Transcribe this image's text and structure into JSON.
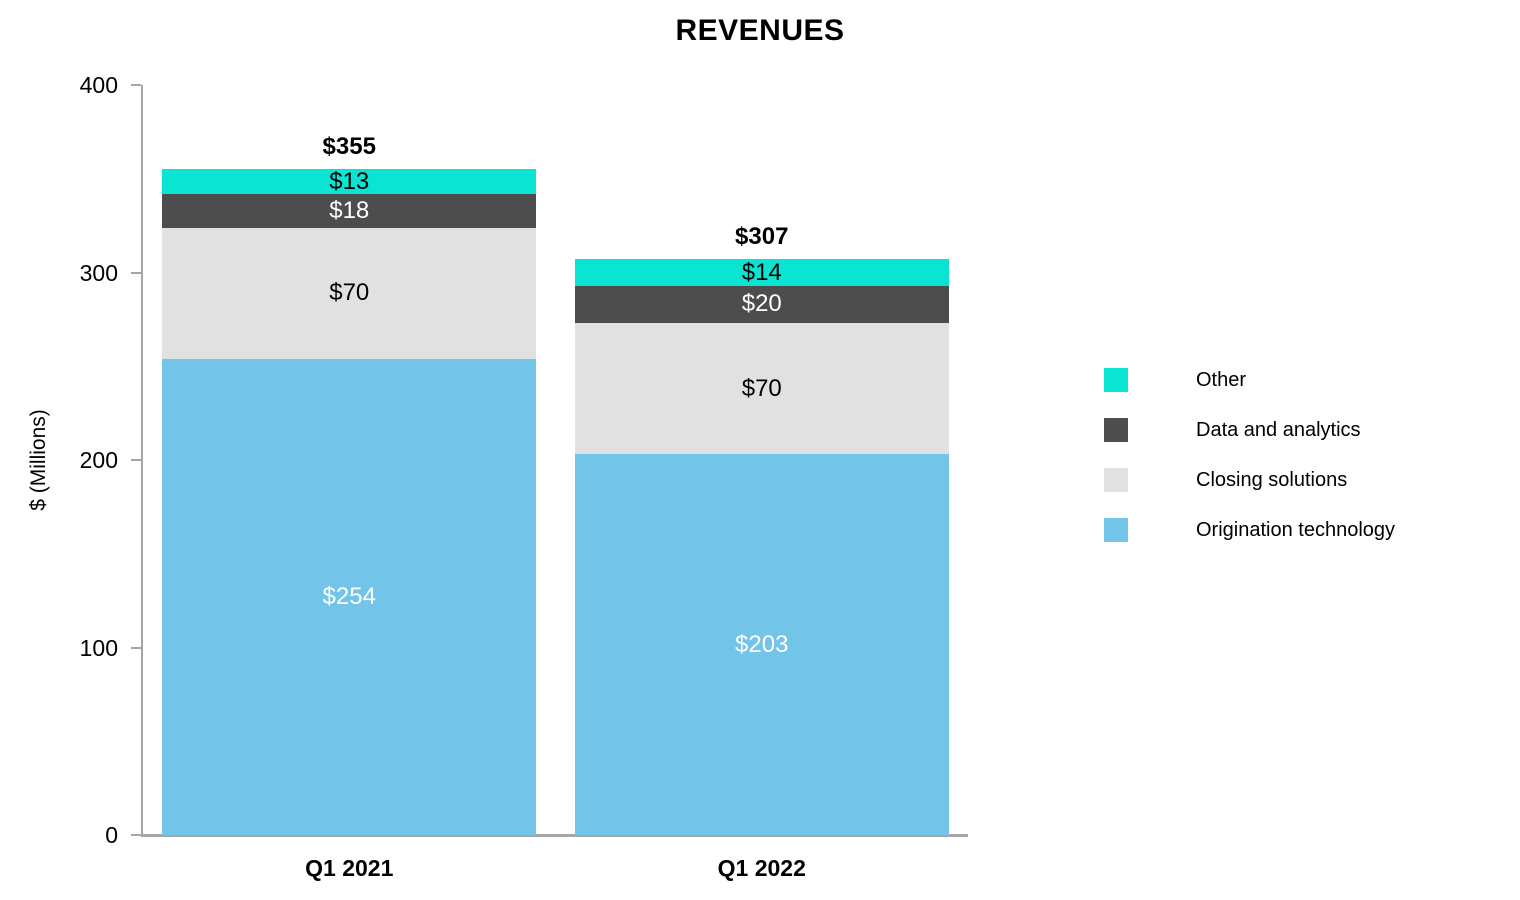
{
  "chart_data": {
    "type": "bar",
    "stacked": true,
    "title": "REVENUES",
    "ylabel": "$ (Millions)",
    "xlabel": "",
    "categories": [
      "Q1 2021",
      "Q1 2022"
    ],
    "series": [
      {
        "name": "Origination technology",
        "color": "#72C4E8",
        "label_color": "#FFFFFF",
        "values": [
          254,
          203
        ]
      },
      {
        "name": "Closing solutions",
        "color": "#E1E1E1",
        "label_color": "#000000",
        "values": [
          70,
          70
        ]
      },
      {
        "name": "Data and analytics",
        "color": "#4D4D4D",
        "label_color": "#FFFFFF",
        "values": [
          18,
          20
        ]
      },
      {
        "name": "Other",
        "color": "#0AE5D3",
        "label_color": "#000000",
        "values": [
          13,
          14
        ]
      }
    ],
    "segment_labels": [
      [
        "$254",
        "$70",
        "$18",
        "$13"
      ],
      [
        "$203",
        "$70",
        "$20",
        "$14"
      ]
    ],
    "totals": [
      355,
      307
    ],
    "total_labels": [
      "$355",
      "$307"
    ],
    "ylim": [
      0,
      400
    ],
    "yticks": [
      0,
      100,
      200,
      300,
      400
    ],
    "ytick_labels": [
      "0",
      "100",
      "200",
      "300",
      "400"
    ],
    "grid": false,
    "legend_position": "right",
    "legend_order": [
      "Other",
      "Data and analytics",
      "Closing solutions",
      "Origination technology"
    ],
    "axis_color": "#A6A6A6",
    "background_color": "#FFFFFF"
  }
}
